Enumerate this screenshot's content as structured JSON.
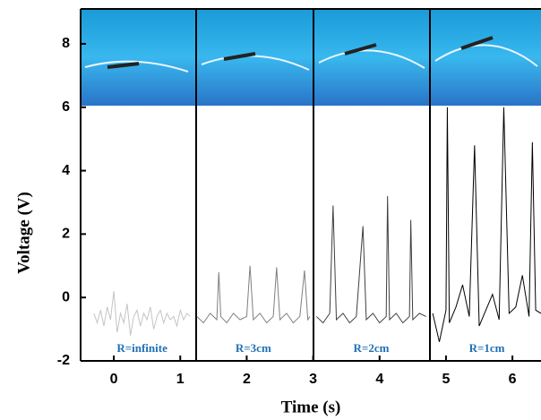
{
  "chart_data": {
    "type": "line",
    "xlabel": "Time (s)",
    "ylabel": "Voltage (V)",
    "xlim": [
      -0.5,
      6.43
    ],
    "ylim": [
      -2,
      9.1
    ],
    "xticks": [
      0,
      1,
      2,
      3,
      4,
      5,
      6
    ],
    "yticks": [
      -2,
      0,
      2,
      4,
      6,
      8
    ],
    "series": [
      {
        "name": "R=infinite",
        "color": "#c4c4c4",
        "x": [
          -0.3,
          -0.25,
          -0.2,
          -0.15,
          -0.1,
          -0.05,
          0,
          0.05,
          0.1,
          0.15,
          0.2,
          0.25,
          0.3,
          0.35,
          0.4,
          0.45,
          0.5,
          0.55,
          0.6,
          0.65,
          0.7,
          0.75,
          0.8,
          0.85,
          0.9,
          0.95,
          1.0,
          1.05,
          1.1,
          1.15
        ],
        "values": [
          -0.5,
          -0.8,
          -0.4,
          -0.9,
          -0.3,
          -0.7,
          0.2,
          -1.1,
          -0.5,
          -0.8,
          -0.2,
          -1.2,
          -0.6,
          -0.4,
          -0.9,
          -0.5,
          -0.7,
          -0.3,
          -1.0,
          -0.6,
          -0.4,
          -0.8,
          -0.5,
          -0.7,
          -0.6,
          -0.9,
          -0.4,
          -0.7,
          -0.5,
          -0.6
        ]
      },
      {
        "name": "R=3cm",
        "color": "#7f7f7f",
        "x": [
          1.25,
          1.35,
          1.45,
          1.55,
          1.58,
          1.61,
          1.7,
          1.8,
          1.9,
          2.0,
          2.05,
          2.1,
          2.2,
          2.3,
          2.4,
          2.45,
          2.5,
          2.6,
          2.7,
          2.8,
          2.87,
          2.92,
          2.95
        ],
        "values": [
          -0.6,
          -0.8,
          -0.5,
          -0.7,
          0.8,
          -0.6,
          -0.8,
          -0.5,
          -0.7,
          -0.6,
          1.0,
          -0.7,
          -0.5,
          -0.8,
          -0.6,
          0.95,
          -0.7,
          -0.5,
          -0.8,
          -0.6,
          0.85,
          -0.7,
          -0.6
        ]
      },
      {
        "name": "R=2cm",
        "color": "#3f3f3f",
        "x": [
          3.05,
          3.15,
          3.25,
          3.3,
          3.35,
          3.45,
          3.55,
          3.65,
          3.75,
          3.8,
          3.9,
          4.0,
          4.1,
          4.12,
          4.15,
          4.25,
          4.35,
          4.45,
          4.47,
          4.5,
          4.6,
          4.7
        ],
        "values": [
          -0.6,
          -0.8,
          -0.5,
          2.9,
          -0.7,
          -0.5,
          -0.8,
          -0.6,
          2.25,
          -0.7,
          -0.5,
          -0.8,
          -0.6,
          3.2,
          -0.7,
          -0.5,
          -0.8,
          -0.6,
          2.45,
          -0.7,
          -0.5,
          -0.6
        ]
      },
      {
        "name": "R=1cm",
        "color": "#000000",
        "x": [
          4.8,
          4.9,
          5.0,
          5.02,
          5.05,
          5.15,
          5.25,
          5.35,
          5.43,
          5.5,
          5.6,
          5.7,
          5.8,
          5.87,
          5.95,
          6.05,
          6.15,
          6.25,
          6.3,
          6.35,
          6.43
        ],
        "values": [
          -0.5,
          -1.4,
          -0.4,
          6.0,
          -0.8,
          -0.3,
          0.4,
          -0.6,
          4.8,
          -0.9,
          -0.4,
          0.1,
          -0.7,
          6.0,
          -0.5,
          -0.3,
          0.7,
          -0.6,
          4.9,
          -0.4,
          -0.5
        ]
      }
    ]
  }
}
